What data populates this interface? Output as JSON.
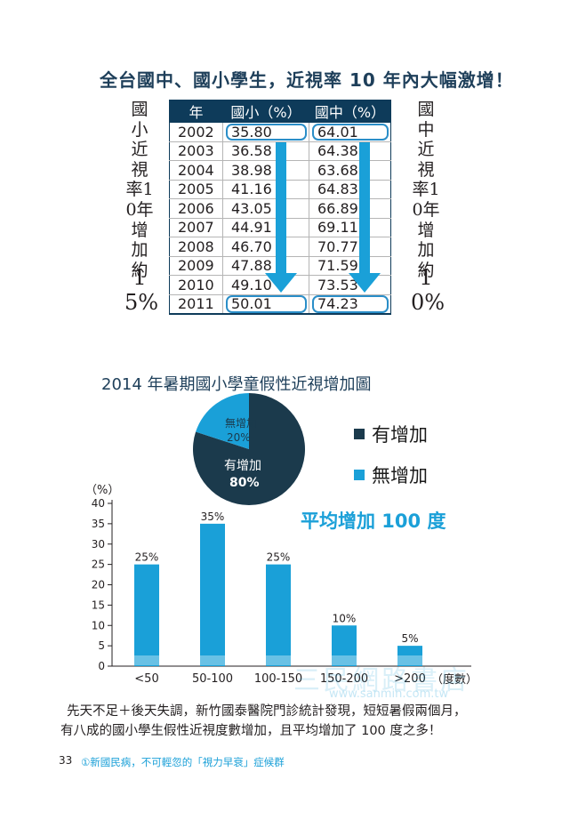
{
  "section1": {
    "title": "全台國中、國小學生，近視率 10 年內大幅激增！",
    "left_caption": "國小近視率10年增加約",
    "left_caption_pct": "15%",
    "right_caption": "國中近視率10年增加約",
    "right_caption_pct": "10%",
    "headers": [
      "年",
      "國小（%）",
      "國中（%）"
    ],
    "colors": {
      "header_bg": "#0e3b5a",
      "arrow": "#1aa0d8",
      "highlight": "#2a8ec8"
    }
  },
  "section2": {
    "title": "2014 年暑期國小學童假性近視增加圖",
    "avg_label": "平均增加 100 度",
    "legend": [
      {
        "label": "有增加",
        "color": "#1b3a4c"
      },
      {
        "label": "無增加",
        "color": "#1aa0d8"
      }
    ]
  },
  "footer": {
    "line1": "先天不足＋後天失調，新竹國泰醫院門診統計發現，短短暑假兩個月，",
    "line2": "有八成的國小學生假性近視度數增加，且平均增加了 100 度之多！",
    "page_number": "33",
    "chapter": "①新國民病，不可輕忽的「視力早衰」症候群"
  },
  "watermark": {
    "text": "三民網路書店",
    "url": "www.sanmin.com.tw"
  },
  "chart_data": [
    {
      "type": "table",
      "title": "全台國中、國小學生，近視率 10 年內大幅激增！",
      "columns": [
        "年",
        "國小（%）",
        "國中（%）"
      ],
      "rows": [
        [
          "2002",
          "35.80",
          "64.01"
        ],
        [
          "2003",
          "36.58",
          "64.38"
        ],
        [
          "2004",
          "38.98",
          "63.68"
        ],
        [
          "2005",
          "41.16",
          "64.83"
        ],
        [
          "2006",
          "43.05",
          "66.89"
        ],
        [
          "2007",
          "44.91",
          "69.11"
        ],
        [
          "2008",
          "46.70",
          "70.77"
        ],
        [
          "2009",
          "47.88",
          "71.59"
        ],
        [
          "2010",
          "49.10",
          "73.53"
        ],
        [
          "2011",
          "50.01",
          "74.23"
        ]
      ]
    },
    {
      "type": "pie",
      "title": "2014 年暑期國小學童假性近視增加圖",
      "slices": [
        {
          "label": "有增加",
          "value": 80,
          "value_label": "80%",
          "color": "#1b3a4c"
        },
        {
          "label": "無增加",
          "value": 20,
          "value_label": "20%",
          "color": "#1aa0d8"
        }
      ]
    },
    {
      "type": "bar",
      "categories": [
        "<50",
        "50-100",
        "100-150",
        "150-200",
        ">200"
      ],
      "values": [
        25,
        35,
        25,
        10,
        5
      ],
      "value_labels": [
        "25%",
        "35%",
        "25%",
        "10%",
        "5%"
      ],
      "ylabel": "（%）",
      "xlabel": "（度數）",
      "ylim": [
        0,
        40
      ],
      "yticks": [
        0,
        5,
        10,
        15,
        20,
        25,
        30,
        35,
        40
      ],
      "bar_color": "#1aa0d8"
    }
  ]
}
